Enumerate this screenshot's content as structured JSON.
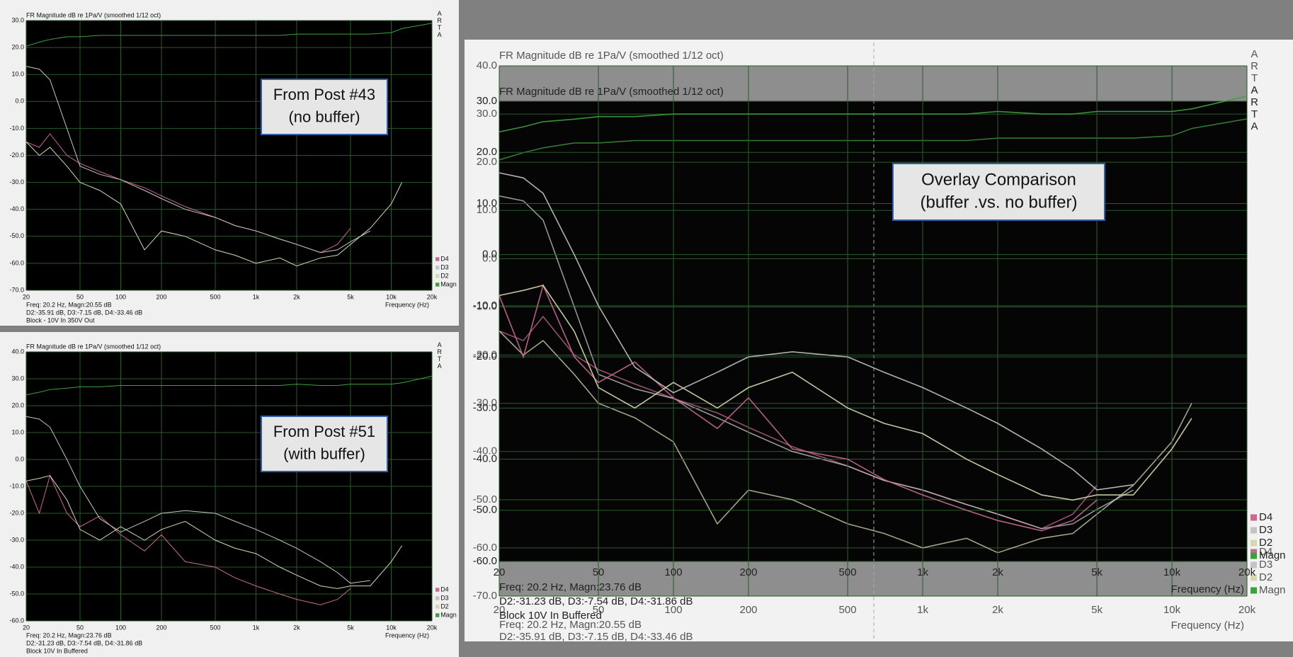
{
  "chart_data": [
    {
      "type": "line",
      "title": "FR Magnitude dB re 1Pa/V (smoothed 1/12 oct)",
      "xlabel": "Frequency (Hz)",
      "logo": "ARTA",
      "xscale": "log",
      "grid": true,
      "legend": "right-bottom",
      "annotation": [
        "From Post #43",
        "(no buffer)"
      ],
      "notes": [
        "Freq: 20.2 Hz, Magn:20.55 dB",
        "D2:-35.91 dB, D3:-7.15 dB, D4:-33.46 dB",
        "Block - 10V In 350V Out"
      ],
      "xlim": [
        20,
        20000
      ],
      "xticks": [
        20,
        50,
        100,
        200,
        500,
        {
          "value": 1000,
          "label": "1k"
        },
        {
          "value": 2000,
          "label": "2k"
        },
        {
          "value": 5000,
          "label": "5k"
        },
        {
          "value": 10000,
          "label": "10k"
        },
        {
          "value": 20000,
          "label": "20k"
        }
      ],
      "ylim": [
        -70,
        30
      ],
      "yticks": [
        {
          "value": 30,
          "label": "30.0"
        },
        {
          "value": 20,
          "label": "20.0"
        },
        {
          "value": 10,
          "label": "10.0"
        },
        {
          "value": 0,
          "label": "0.0"
        },
        {
          "value": -10,
          "label": "-10.0"
        },
        {
          "value": -20,
          "label": "-20.0"
        },
        {
          "value": -30,
          "label": "-30.0"
        },
        {
          "value": -40,
          "label": "-40.0"
        },
        {
          "value": -50,
          "label": "-50.0"
        },
        {
          "value": -60,
          "label": "-60.0"
        },
        {
          "value": -70,
          "label": "-70.0"
        }
      ],
      "x": [
        20,
        25,
        30,
        40,
        50,
        70,
        100,
        150,
        200,
        300,
        500,
        700,
        1000,
        1500,
        2000,
        3000,
        4000,
        5000,
        7000,
        10000,
        12000,
        20000
      ],
      "series": [
        {
          "name": "D4",
          "color": "#c86a92",
          "values": [
            -15,
            -17,
            -12,
            -20,
            -23,
            -26,
            -29,
            -32,
            -35,
            -39,
            -43,
            -46,
            -48,
            -51,
            -53,
            -56,
            -53,
            -47,
            null,
            null,
            null,
            null
          ]
        },
        {
          "name": "D3",
          "color": "#c4c4c4",
          "values": [
            13,
            12,
            8,
            -10,
            -24,
            -27,
            -29,
            -33,
            -36,
            -40,
            -43,
            -46,
            -48,
            -51,
            -53,
            -56,
            -55,
            -52,
            -48,
            null,
            null,
            null
          ]
        },
        {
          "name": "D2",
          "color": "#d8d8b0",
          "values": [
            -15,
            -20,
            -17,
            -24,
            -30,
            -33,
            -38,
            -55,
            -48,
            -50,
            -55,
            -57,
            -60,
            -58,
            -61,
            -58,
            -57,
            -53,
            -47,
            -38,
            -30,
            null
          ]
        },
        {
          "name": "Magn",
          "color": "#3fa03f",
          "values": [
            20.5,
            22,
            23,
            24,
            24,
            24.5,
            24.5,
            24.5,
            24.5,
            24.5,
            24.5,
            24.5,
            24.5,
            24.5,
            25,
            25,
            25,
            25,
            25,
            25.5,
            27,
            29
          ]
        }
      ]
    },
    {
      "type": "line",
      "title": "FR Magnitude dB re 1Pa/V (smoothed 1/12 oct)",
      "xlabel": "Frequency (Hz)",
      "logo": "ARTA",
      "xscale": "log",
      "grid": true,
      "legend": "right-bottom",
      "annotation": [
        "From Post #51",
        "(with buffer)"
      ],
      "notes": [
        "Freq: 20.2 Hz, Magn:23.76 dB",
        "D2:-31.23 dB, D3:-7.54 dB, D4:-31.86 dB",
        "Block 10V In Buffered"
      ],
      "xlim": [
        20,
        20000
      ],
      "xticks": [
        20,
        50,
        100,
        200,
        500,
        {
          "value": 1000,
          "label": "1k"
        },
        {
          "value": 2000,
          "label": "2k"
        },
        {
          "value": 5000,
          "label": "5k"
        },
        {
          "value": 10000,
          "label": "10k"
        },
        {
          "value": 20000,
          "label": "20k"
        }
      ],
      "ylim": [
        -60,
        40
      ],
      "yticks": [
        {
          "value": 40,
          "label": "40.0"
        },
        {
          "value": 30,
          "label": "30.0"
        },
        {
          "value": 20,
          "label": "20.0"
        },
        {
          "value": 10,
          "label": "10.0"
        },
        {
          "value": 0,
          "label": "0.0"
        },
        {
          "value": -10,
          "label": "-10.0"
        },
        {
          "value": -20,
          "label": "-20.0"
        },
        {
          "value": -30,
          "label": "-30.0"
        },
        {
          "value": -40,
          "label": "-40.0"
        },
        {
          "value": -50,
          "label": "-50.0"
        },
        {
          "value": -60,
          "label": "-60.0"
        }
      ],
      "x": [
        20,
        25,
        30,
        40,
        50,
        70,
        100,
        150,
        200,
        300,
        500,
        700,
        1000,
        1500,
        2000,
        3000,
        4000,
        5000,
        7000,
        10000,
        12000,
        20000
      ],
      "series": [
        {
          "name": "D4",
          "color": "#c86a92",
          "values": [
            -8,
            -20,
            -6,
            -20,
            -25,
            -21,
            -28,
            -34,
            -28,
            -38,
            -40,
            -44,
            -47,
            -50,
            -52,
            -54,
            -52,
            -48,
            null,
            null,
            null,
            null
          ]
        },
        {
          "name": "D3",
          "color": "#c4c4c4",
          "values": [
            16,
            15,
            12,
            0,
            -10,
            -22,
            -27,
            -23,
            -20,
            -19,
            -20,
            -23,
            -26,
            -30,
            -33,
            -38,
            -42,
            -46,
            -45,
            null,
            null,
            null
          ]
        },
        {
          "name": "D2",
          "color": "#d8d8b0",
          "values": [
            -8,
            -7,
            -6,
            -15,
            -26,
            -30,
            -25,
            -30,
            -26,
            -23,
            -30,
            -33,
            -35,
            -40,
            -43,
            -47,
            -48,
            -47,
            -47,
            -38,
            -32,
            null
          ]
        },
        {
          "name": "Magn",
          "color": "#3fa03f",
          "values": [
            24,
            25,
            26,
            26.5,
            27,
            27,
            27.5,
            27.5,
            27.5,
            27.5,
            27.5,
            27.5,
            27.5,
            27.5,
            28,
            27.5,
            27.5,
            28,
            28,
            28,
            28.5,
            31
          ]
        }
      ]
    },
    {
      "type": "line",
      "title": "FR Magnitude dB re 1Pa/V (smoothed 1/12 oct)",
      "xlabel": "Frequency (Hz)",
      "logo": "ARTA",
      "xscale": "log",
      "grid": true,
      "legend": "right-bottom",
      "notes": [
        "Freq: 20.2 Hz, Magn:20.55 dB",
        "D2:-35.91 dB, D3:-7.15 dB, D4:-33.46 dB"
      ],
      "xlim": [
        20,
        20000
      ],
      "xticks": [
        20,
        50,
        100,
        200,
        500,
        {
          "value": 1000,
          "label": "1k"
        },
        {
          "value": 2000,
          "label": "2k"
        },
        {
          "value": 5000,
          "label": "5k"
        },
        {
          "value": 10000,
          "label": "10k"
        },
        {
          "value": 20000,
          "label": "20k"
        }
      ],
      "ylim": [
        -70,
        40
      ],
      "yticks": [
        {
          "value": 40,
          "label": "40.0"
        },
        {
          "value": 30,
          "label": "30.0"
        },
        {
          "value": 20,
          "label": "20.0"
        },
        {
          "value": 10,
          "label": "10.0"
        },
        {
          "value": 0,
          "label": "0.0"
        },
        {
          "value": -10,
          "label": "-10.0"
        },
        {
          "value": -20,
          "label": "-20.0"
        },
        {
          "value": -30,
          "label": "-30.0"
        },
        {
          "value": -40,
          "label": "-40.0"
        },
        {
          "value": -50,
          "label": "-50.0"
        },
        {
          "value": -60,
          "label": "-60.0"
        },
        {
          "value": -70,
          "label": "-70.0"
        }
      ],
      "x": [
        20,
        25,
        30,
        40,
        50,
        70,
        100,
        150,
        200,
        300,
        500,
        700,
        1000,
        1500,
        2000,
        3000,
        4000,
        5000,
        7000,
        10000,
        12000,
        20000
      ],
      "series": [
        {
          "name": "D4",
          "color": "#c86a92",
          "values": [
            -15,
            -17,
            -12,
            -20,
            -23,
            -26,
            -29,
            -32,
            -35,
            -39,
            -43,
            -46,
            -48,
            -51,
            -53,
            -56,
            -53,
            -47,
            null,
            null,
            null,
            null
          ]
        },
        {
          "name": "D3",
          "color": "#c4c4c4",
          "values": [
            13,
            12,
            8,
            -10,
            -24,
            -27,
            -29,
            -33,
            -36,
            -40,
            -43,
            -46,
            -48,
            -51,
            -53,
            -56,
            -55,
            -52,
            -48,
            null,
            null,
            null
          ]
        },
        {
          "name": "D2",
          "color": "#d8d8b0",
          "values": [
            -15,
            -20,
            -17,
            -24,
            -30,
            -33,
            -38,
            -55,
            -48,
            -50,
            -55,
            -57,
            -60,
            -58,
            -61,
            -58,
            -57,
            -53,
            -47,
            -38,
            -30,
            null
          ]
        },
        {
          "name": "Magn",
          "color": "#3fa03f",
          "values": [
            20.5,
            22,
            23,
            24,
            24,
            24.5,
            24.5,
            24.5,
            24.5,
            24.5,
            24.5,
            24.5,
            24.5,
            24.5,
            25,
            25,
            25,
            25,
            25,
            25.5,
            27,
            29
          ]
        }
      ]
    },
    {
      "type": "line",
      "title": "FR Magnitude dB re 1Pa/V (smoothed 1/12 oct)",
      "xlabel": "Frequency (Hz)",
      "logo": "ARTA",
      "xscale": "log",
      "grid": true,
      "legend": "right-bottom",
      "annotation": [
        "Overlay Comparison",
        "(buffer .vs. no buffer)"
      ],
      "notes": [
        "Freq: 20.2 Hz, Magn:23.76 dB",
        "D2:-31.23 dB, D3:-7.54 dB, D4:-31.86 dB",
        "Block 10V In Buffered"
      ],
      "xlim": [
        20,
        20000
      ],
      "xticks": [
        20,
        50,
        100,
        200,
        500,
        {
          "value": 1000,
          "label": "1k"
        },
        {
          "value": 2000,
          "label": "2k"
        },
        {
          "value": 5000,
          "label": "5k"
        },
        {
          "value": 10000,
          "label": "10k"
        },
        {
          "value": 20000,
          "label": "20k"
        }
      ],
      "ylim": [
        -60,
        30
      ],
      "yticks": [
        {
          "value": 30,
          "label": "30.0"
        },
        {
          "value": 20,
          "label": "20.0"
        },
        {
          "value": 10,
          "label": "10.0"
        },
        {
          "value": 0,
          "label": "0.0"
        },
        {
          "value": -10,
          "label": "-10.0"
        },
        {
          "value": -20,
          "label": "-20.0"
        },
        {
          "value": -30,
          "label": "-30.0"
        },
        {
          "value": -40,
          "label": "-40.0"
        },
        {
          "value": -50,
          "label": "-50.0"
        },
        {
          "value": -60,
          "label": "-60.0"
        }
      ],
      "x": [
        20,
        25,
        30,
        40,
        50,
        70,
        100,
        150,
        200,
        300,
        500,
        700,
        1000,
        1500,
        2000,
        3000,
        4000,
        5000,
        7000,
        10000,
        12000,
        20000
      ],
      "series": [
        {
          "name": "D4",
          "color": "#c86a92",
          "values": [
            -8,
            -20,
            -6,
            -20,
            -25,
            -21,
            -28,
            -34,
            -28,
            -38,
            -40,
            -44,
            -47,
            -50,
            -52,
            -54,
            -52,
            -48,
            null,
            null,
            null,
            null
          ]
        },
        {
          "name": "D3",
          "color": "#c4c4c4",
          "values": [
            16,
            15,
            12,
            0,
            -10,
            -22,
            -27,
            -23,
            -20,
            -19,
            -20,
            -23,
            -26,
            -30,
            -33,
            -38,
            -42,
            -46,
            -45,
            null,
            null,
            null
          ]
        },
        {
          "name": "D2",
          "color": "#d8d8b0",
          "values": [
            -8,
            -7,
            -6,
            -15,
            -26,
            -30,
            -25,
            -30,
            -26,
            -23,
            -30,
            -33,
            -35,
            -40,
            -43,
            -47,
            -48,
            -47,
            -47,
            -38,
            -32,
            null
          ]
        },
        {
          "name": "Magn",
          "color": "#3fa03f",
          "values": [
            24,
            25,
            26,
            26.5,
            27,
            27,
            27.5,
            27.5,
            27.5,
            27.5,
            27.5,
            27.5,
            27.5,
            27.5,
            28,
            27.5,
            27.5,
            28,
            28,
            28,
            28.5,
            31
          ]
        }
      ]
    }
  ]
}
